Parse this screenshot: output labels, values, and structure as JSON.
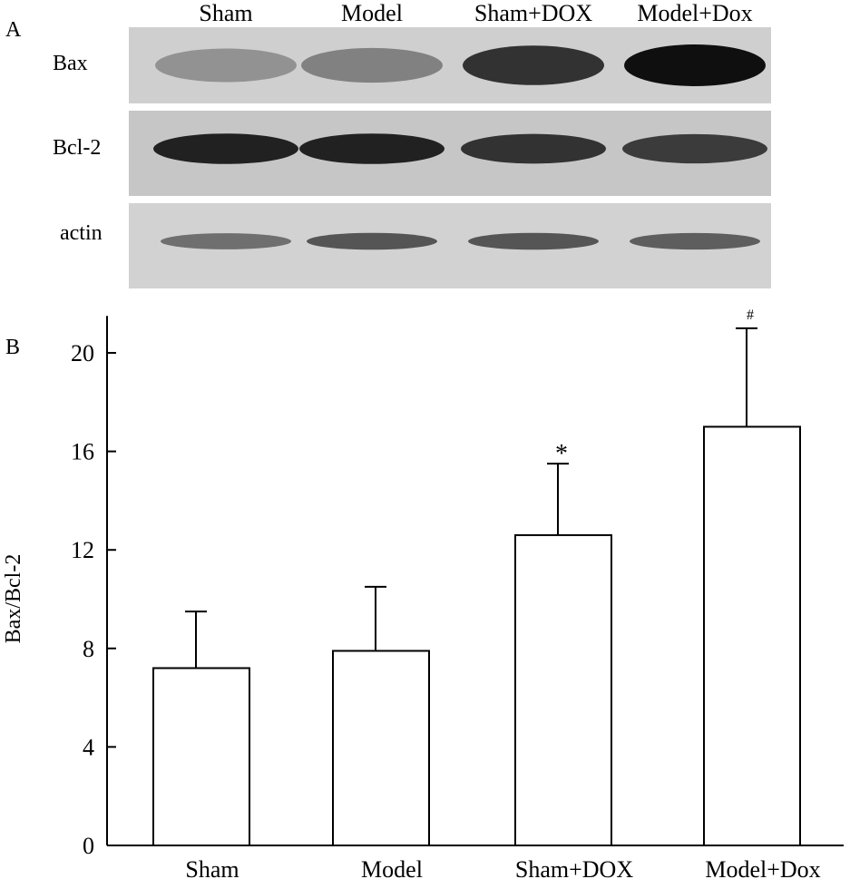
{
  "panel_a": {
    "label": "A",
    "lanes": [
      "Sham",
      "Model",
      "Sham+DOX",
      "Model+Dox"
    ],
    "blots": [
      {
        "name": "Bax",
        "intensity": [
          0.25,
          0.35,
          0.8,
          1.0
        ]
      },
      {
        "name": "Bcl-2",
        "intensity": [
          0.9,
          0.9,
          0.8,
          0.75
        ]
      },
      {
        "name": "actin",
        "intensity": [
          0.45,
          0.6,
          0.6,
          0.55
        ]
      }
    ]
  },
  "panel_b": {
    "label": "B"
  },
  "chart_data": {
    "type": "bar",
    "categories": [
      "Sham",
      "Model",
      "Sham+DOX",
      "Model+Dox"
    ],
    "values": [
      7.2,
      7.9,
      12.6,
      17.0
    ],
    "error_upper": [
      9.5,
      10.5,
      15.5,
      21.0
    ],
    "annotations": [
      "",
      "",
      "*",
      "#"
    ],
    "ylabel": "Bax/Bcl-2",
    "xlabel": "",
    "ylim": [
      0,
      21.5
    ],
    "yticks": [
      0,
      4,
      8,
      12,
      16,
      20
    ],
    "bar_fill": "#ffffff",
    "bar_stroke": "#000000",
    "grid": false,
    "legend": "none"
  }
}
